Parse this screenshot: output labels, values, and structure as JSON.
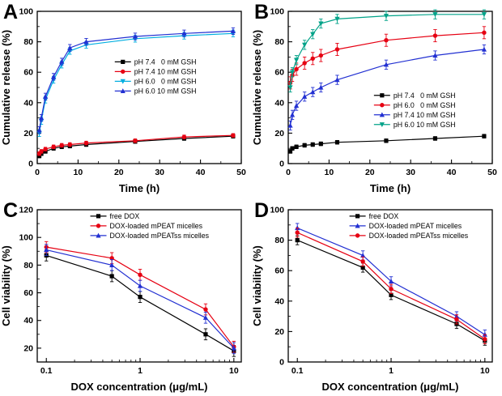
{
  "figure": {
    "background": "#ffffff",
    "panel_order": [
      "A",
      "B",
      "C",
      "D"
    ]
  },
  "chart_data": [
    {
      "id": "A",
      "panel_label": "A",
      "type": "line",
      "xlabel": "Time (h)",
      "ylabel": "Cumulative release (%)",
      "xscale": "linear",
      "xlim": [
        0,
        50
      ],
      "ylim": [
        0,
        100
      ],
      "xticks": [
        0,
        10,
        20,
        30,
        40,
        50
      ],
      "yticks": [
        0,
        20,
        40,
        60,
        80,
        100
      ],
      "xminors": [
        5,
        15,
        25,
        35,
        45
      ],
      "yminors": [
        10,
        30,
        50,
        70,
        90
      ],
      "grid": false,
      "legend": {
        "position": "middle-right",
        "fx": 0.38,
        "fy": 0.3
      },
      "margins": {
        "l": 46,
        "r": 12,
        "t": 14,
        "b": 42
      },
      "x": [
        0.5,
        1,
        2,
        4,
        6,
        8,
        12,
        24,
        36,
        48
      ],
      "series": [
        {
          "name": "pH 7.4   0 mM GSH",
          "color": "#000000",
          "marker": "square",
          "err": 1.2,
          "values": [
            5,
            6.5,
            8,
            10,
            11,
            11.5,
            12.5,
            14.5,
            16.5,
            18
          ]
        },
        {
          "name": "pH 7.4 10 mM GSH",
          "color": "#e60012",
          "marker": "circle",
          "err": 1.2,
          "values": [
            6.5,
            8,
            9.5,
            11,
            12,
            12.5,
            13.5,
            15,
            17.5,
            18.5
          ]
        },
        {
          "name": "pH 6.0   0 mM GSH",
          "color": "#00aee0",
          "marker": "triangle-down",
          "err": 2.2,
          "values": [
            20,
            28,
            42,
            55,
            65,
            74,
            78,
            82,
            84,
            85.5
          ]
        },
        {
          "name": "pH 6.0 10 mM GSH",
          "color": "#2230d2",
          "marker": "triangle-up",
          "err": 2.2,
          "values": [
            22,
            30,
            44,
            57,
            67,
            76,
            80,
            83.5,
            85.5,
            87
          ]
        }
      ]
    },
    {
      "id": "B",
      "panel_label": "B",
      "type": "line",
      "xlabel": "Time (h)",
      "ylabel": "Cumulative release (%)",
      "xscale": "linear",
      "xlim": [
        0,
        50
      ],
      "ylim": [
        0,
        100
      ],
      "xticks": [
        0,
        10,
        20,
        30,
        40,
        50
      ],
      "yticks": [
        0,
        20,
        40,
        60,
        80,
        100
      ],
      "xminors": [
        5,
        15,
        25,
        35,
        45
      ],
      "yminors": [
        10,
        30,
        50,
        70,
        90
      ],
      "grid": false,
      "legend": {
        "position": "lower-right",
        "fx": 0.42,
        "fy": 0.52
      },
      "margins": {
        "l": 46,
        "r": 12,
        "t": 14,
        "b": 42
      },
      "x": [
        0.5,
        1,
        2,
        4,
        6,
        8,
        12,
        24,
        36,
        48
      ],
      "series": [
        {
          "name": "pH 7.4   0 mM GSH",
          "color": "#000000",
          "marker": "square",
          "err": 1.2,
          "values": [
            8,
            10,
            11,
            12,
            12.5,
            13,
            14,
            15,
            16.5,
            18
          ]
        },
        {
          "name": "pH 6.0   0 mM GSH",
          "color": "#e60012",
          "marker": "circle",
          "err": 4,
          "values": [
            53,
            58,
            62,
            66,
            69,
            71,
            75,
            81,
            84,
            86
          ]
        },
        {
          "name": "pH 7.4 10 mM GSH",
          "color": "#2230d2",
          "marker": "triangle-up",
          "err": 3,
          "values": [
            25,
            32,
            38,
            44,
            47,
            50,
            55,
            65,
            71,
            75
          ]
        },
        {
          "name": "pH 6.0 10 mM GSH",
          "color": "#00a288",
          "marker": "triangle-down",
          "err": 3,
          "values": [
            50,
            60,
            68,
            78,
            85,
            92,
            95,
            97,
            98,
            98
          ]
        }
      ]
    },
    {
      "id": "C",
      "panel_label": "C",
      "type": "line",
      "xlabel": "DOX concentration (μg/mL)",
      "ylabel": "Cell viability (%)",
      "xscale": "log",
      "xlim": [
        0.08,
        12
      ],
      "ylim": [
        10,
        120
      ],
      "xticks": [
        0.1,
        1,
        10
      ],
      "yticks": [
        20,
        40,
        60,
        80,
        100,
        120
      ],
      "xminors": [
        0.2,
        0.3,
        0.4,
        0.5,
        0.6,
        0.7,
        0.8,
        0.9,
        2,
        3,
        4,
        5,
        6,
        7,
        8,
        9
      ],
      "yminors": [
        30,
        50,
        70,
        90,
        110
      ],
      "grid": false,
      "legend": {
        "position": "upper-right",
        "fx": 0.26,
        "fy": 0.01
      },
      "margins": {
        "l": 46,
        "r": 12,
        "t": 14,
        "b": 42
      },
      "x": [
        0.1,
        0.5,
        1,
        5,
        10
      ],
      "series": [
        {
          "name": "free DOX",
          "color": "#000000",
          "marker": "square",
          "err": 4,
          "values": [
            87,
            72,
            57,
            30,
            18
          ]
        },
        {
          "name": "DOX-loaded mPEAT micelles",
          "color": "#e60012",
          "marker": "circle",
          "err": 4,
          "values": [
            93,
            85,
            73,
            48,
            21
          ]
        },
        {
          "name": "DOX-loaded mPEATss micelles",
          "color": "#2230d2",
          "marker": "triangle-up",
          "err": 4,
          "values": [
            91,
            80,
            65,
            42,
            20
          ]
        }
      ]
    },
    {
      "id": "D",
      "panel_label": "D",
      "type": "line",
      "xlabel": "DOX concentration (μg/mL)",
      "ylabel": "Cell viability (%)",
      "xscale": "log",
      "xlim": [
        0.08,
        12
      ],
      "ylim": [
        0,
        100
      ],
      "xticks": [
        0.1,
        1,
        10
      ],
      "yticks": [
        0,
        20,
        40,
        60,
        80,
        100
      ],
      "xminors": [
        0.2,
        0.3,
        0.4,
        0.5,
        0.6,
        0.7,
        0.8,
        0.9,
        2,
        3,
        4,
        5,
        6,
        7,
        8,
        9
      ],
      "yminors": [
        10,
        30,
        50,
        70,
        90
      ],
      "grid": false,
      "legend": {
        "position": "upper-right",
        "fx": 0.3,
        "fy": 0.01
      },
      "margins": {
        "l": 46,
        "r": 12,
        "t": 14,
        "b": 42
      },
      "x": [
        0.1,
        0.5,
        1,
        5,
        10
      ],
      "series": [
        {
          "name": "free DOX",
          "color": "#000000",
          "marker": "square",
          "err": 3,
          "values": [
            80,
            62,
            44,
            25,
            14
          ]
        },
        {
          "name": "DOX-loaded mPEAT micelles",
          "color": "#2230d2",
          "marker": "triangle-up",
          "err": 3,
          "values": [
            88,
            70,
            53,
            30,
            18
          ]
        },
        {
          "name": "DOX-loaded mPEATss micelles",
          "color": "#e60012",
          "marker": "circle",
          "err": 3,
          "values": [
            85,
            66,
            48,
            28,
            15
          ]
        }
      ]
    }
  ]
}
